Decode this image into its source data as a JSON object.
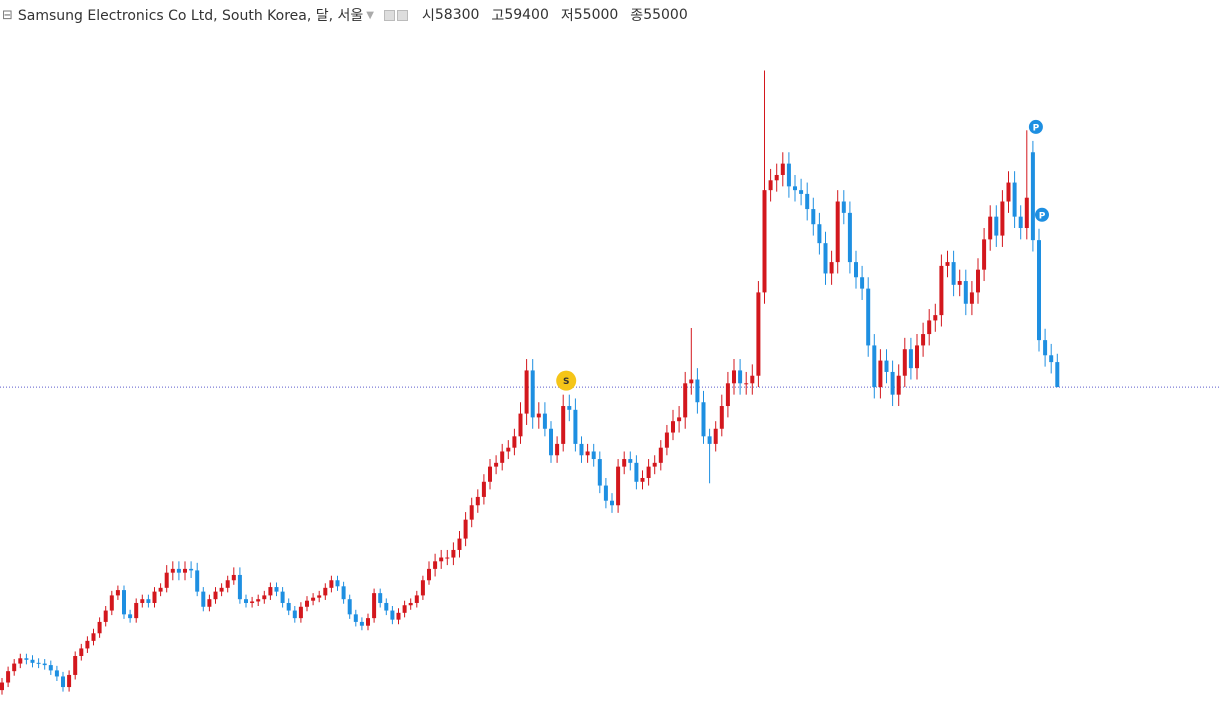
{
  "chart_data": {
    "type": "candlestick",
    "title": "Samsung Electronics Co Ltd, South Korea, 달, 서울",
    "ohlc_labels": [
      "시",
      "고",
      "저",
      "종"
    ],
    "up_color": "#d3171d",
    "down_color": "#1e8fe1",
    "last_line_color": "#5a5acc",
    "ylim": [
      12900,
      106100
    ],
    "open": [
      15000,
      16000,
      17500,
      18500,
      19200,
      19000,
      18600,
      18500,
      18300,
      17600,
      16800,
      15400,
      17000,
      19500,
      20500,
      21500,
      22500,
      24000,
      25500,
      27500,
      28200,
      25000,
      24500,
      26500,
      27000,
      26500,
      28000,
      28500,
      30500,
      31000,
      30500,
      31000,
      30800,
      28000,
      26000,
      27000,
      28000,
      28500,
      29500,
      30200,
      27000,
      26500,
      26700,
      27000,
      27500,
      28600,
      28000,
      26500,
      25500,
      24500,
      26000,
      26800,
      27200,
      27500,
      28500,
      29500,
      28700,
      27000,
      25000,
      24000,
      23500,
      24500,
      27800,
      26500,
      25500,
      24300,
      25200,
      26200,
      26500,
      27500,
      29500,
      31000,
      32000,
      32500,
      32500,
      33500,
      35000,
      37500,
      39400,
      40500,
      42500,
      44500,
      45000,
      46500,
      47000,
      48500,
      51500,
      57200,
      51000,
      51500,
      49500,
      46000,
      47500,
      52500,
      52000,
      47500,
      46000,
      46500,
      45500,
      42000,
      40000,
      39400,
      44500,
      45500,
      45000,
      42500,
      43000,
      44500,
      45000,
      47000,
      49000,
      50500,
      51000,
      55500,
      56000,
      53000,
      48500,
      47500,
      49500,
      52500,
      55500,
      57200,
      55500,
      55500,
      56500,
      67500,
      81000,
      82300,
      83000,
      84500,
      81500,
      81000,
      80500,
      78500,
      76500,
      74000,
      70000,
      71500,
      79500,
      78000,
      71500,
      69500,
      68000,
      60500,
      55000,
      58500,
      57000,
      54000,
      56500,
      60000,
      57500,
      60500,
      62000,
      63800,
      64500,
      71000,
      71500,
      68500,
      69000,
      66000,
      67500,
      70500,
      74500,
      77500,
      75000,
      79500,
      82000,
      77500,
      76000,
      86000,
      74400,
      61200,
      59200,
      58300
    ],
    "high": [
      16600,
      18100,
      19100,
      19800,
      19800,
      19600,
      19200,
      19100,
      18900,
      18200,
      17400,
      17600,
      20100,
      21100,
      22100,
      23100,
      24600,
      26100,
      28100,
      28800,
      28800,
      25600,
      27100,
      27600,
      27600,
      28600,
      29100,
      31500,
      32000,
      32000,
      32000,
      32000,
      31800,
      28600,
      27600,
      28600,
      29100,
      30100,
      31200,
      31200,
      27600,
      27300,
      27600,
      28100,
      29200,
      29200,
      28600,
      27100,
      26100,
      26600,
      27400,
      27800,
      28100,
      29100,
      30100,
      30100,
      29300,
      27600,
      25600,
      24600,
      25100,
      28400,
      28400,
      27100,
      26100,
      25800,
      26800,
      27100,
      28100,
      30100,
      32000,
      33000,
      33500,
      33500,
      34500,
      36000,
      38500,
      40400,
      41500,
      43500,
      45500,
      46000,
      47500,
      48000,
      49500,
      53000,
      58700,
      58700,
      53000,
      53000,
      50500,
      48500,
      54000,
      54000,
      53500,
      48500,
      47500,
      47500,
      46500,
      43000,
      41000,
      45500,
      46500,
      46500,
      46000,
      44000,
      45500,
      46000,
      48000,
      50000,
      52000,
      52500,
      57000,
      62800,
      57500,
      54500,
      49500,
      50500,
      54000,
      57000,
      58700,
      58700,
      57000,
      58000,
      69000,
      96800,
      83800,
      84500,
      86000,
      86000,
      83000,
      82500,
      82000,
      80000,
      78000,
      75500,
      73000,
      81000,
      81000,
      79500,
      73000,
      71000,
      69500,
      62000,
      60000,
      60000,
      58500,
      58000,
      61500,
      61500,
      62000,
      63500,
      65300,
      66000,
      72500,
      73000,
      73000,
      70500,
      70500,
      69000,
      72000,
      76000,
      79000,
      79000,
      81000,
      83500,
      83500,
      79000,
      88900,
      87500,
      75900,
      62700,
      60700,
      59400
    ],
    "low": [
      14400,
      15400,
      16900,
      17900,
      18400,
      18000,
      17900,
      17700,
      17000,
      16200,
      14800,
      14800,
      16400,
      18900,
      19900,
      20900,
      21900,
      23400,
      24900,
      26900,
      24400,
      23900,
      23900,
      25900,
      25900,
      25900,
      27400,
      27900,
      29500,
      29500,
      29500,
      29800,
      27400,
      25400,
      25400,
      26400,
      27400,
      27900,
      28900,
      26400,
      25900,
      25900,
      26100,
      26400,
      26900,
      27400,
      25900,
      24900,
      23900,
      23900,
      25400,
      26200,
      26600,
      26900,
      27900,
      28100,
      26400,
      24400,
      23400,
      22900,
      22900,
      23900,
      25900,
      24900,
      23700,
      23700,
      24600,
      25600,
      25900,
      26900,
      28900,
      30000,
      31000,
      31500,
      31500,
      32500,
      34000,
      36500,
      38400,
      39500,
      41500,
      43500,
      44000,
      45500,
      46000,
      47500,
      50000,
      49500,
      49500,
      48500,
      45000,
      45000,
      46500,
      50500,
      46500,
      45000,
      45000,
      44500,
      41000,
      39000,
      38400,
      38400,
      43500,
      44000,
      41500,
      41500,
      42000,
      43500,
      44000,
      46000,
      48000,
      49000,
      49500,
      54000,
      51500,
      47500,
      42300,
      46500,
      48500,
      51000,
      54000,
      54000,
      54000,
      54000,
      55000,
      66000,
      79500,
      80800,
      81500,
      80000,
      79500,
      79000,
      77000,
      75000,
      72500,
      68500,
      68500,
      70000,
      76500,
      70000,
      68000,
      66500,
      59000,
      53500,
      53500,
      55500,
      52500,
      52500,
      55000,
      56000,
      56000,
      59000,
      60500,
      62300,
      63000,
      69500,
      67000,
      67000,
      64500,
      64500,
      66000,
      69000,
      73000,
      73500,
      73500,
      78000,
      76000,
      74500,
      74500,
      72900,
      59700,
      57700,
      56800,
      55000
    ],
    "close": [
      16000,
      17500,
      18500,
      19200,
      19000,
      18600,
      18500,
      18300,
      17600,
      16800,
      15400,
      17000,
      19500,
      20500,
      21500,
      22500,
      24000,
      25500,
      27500,
      28200,
      25000,
      24500,
      26500,
      27000,
      26500,
      28000,
      28500,
      30500,
      31000,
      30500,
      31000,
      30800,
      28000,
      26000,
      27000,
      28000,
      28500,
      29500,
      30200,
      27000,
      26500,
      26700,
      27000,
      27500,
      28600,
      28000,
      26500,
      25500,
      24500,
      26000,
      26800,
      27200,
      27500,
      28500,
      29500,
      28700,
      27000,
      25000,
      24000,
      23500,
      24500,
      27800,
      26500,
      25500,
      24300,
      25200,
      26200,
      26500,
      27500,
      29500,
      31000,
      32000,
      32500,
      32500,
      33500,
      35000,
      37500,
      39400,
      40500,
      42500,
      44500,
      45000,
      46500,
      47000,
      48500,
      51500,
      57200,
      51000,
      51500,
      49500,
      46000,
      47500,
      52500,
      52000,
      47500,
      46000,
      46500,
      45500,
      42000,
      40000,
      39400,
      44500,
      45500,
      45000,
      42500,
      43000,
      44500,
      45000,
      47000,
      49000,
      50500,
      51000,
      55500,
      56000,
      53000,
      48500,
      47500,
      49500,
      52500,
      55500,
      57200,
      55500,
      55500,
      56500,
      67500,
      81000,
      82300,
      83000,
      84500,
      81500,
      81000,
      80500,
      78500,
      76500,
      74000,
      70000,
      71500,
      79500,
      78000,
      71500,
      69500,
      68000,
      60500,
      55000,
      58500,
      57000,
      54000,
      56500,
      60000,
      57500,
      60500,
      62000,
      63800,
      64500,
      71000,
      71500,
      68500,
      69000,
      66000,
      67500,
      70500,
      74500,
      77500,
      75000,
      79500,
      82000,
      77500,
      76000,
      80000,
      74400,
      61200,
      59200,
      58300,
      55000
    ],
    "markers": [
      {
        "text": "S",
        "index": 92,
        "color": "#f5c518"
      },
      {
        "text": "P",
        "index": 169,
        "color": "#1e8fe1"
      },
      {
        "text": "P",
        "index": 170,
        "color": "#1e8fe1"
      }
    ]
  }
}
